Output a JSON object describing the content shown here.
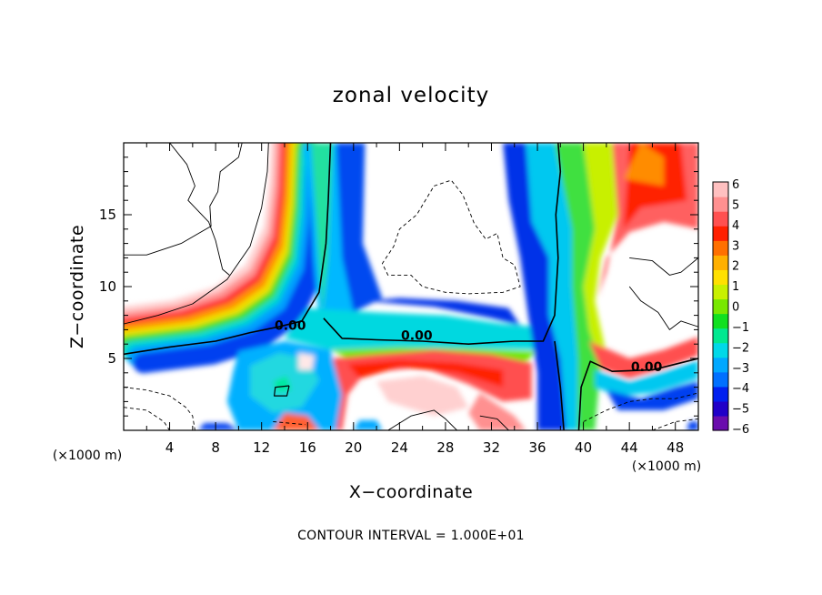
{
  "chart_data": {
    "type": "heatmap",
    "title": "zonal velocity",
    "xlabel": "X−coordinate",
    "ylabel": "Z−coordinate",
    "x_unit_label": "(×1000 m)",
    "y_unit_label": "(×1000 m)",
    "xlim": [
      0,
      50
    ],
    "ylim": [
      0,
      20
    ],
    "x_ticks": [
      4,
      8,
      12,
      16,
      20,
      24,
      28,
      32,
      36,
      40,
      44,
      48
    ],
    "y_ticks": [
      5,
      10,
      15
    ],
    "colorbar": {
      "min": -6,
      "max": 6,
      "tick_labels": [
        "6",
        "5",
        "4",
        "3",
        "2",
        "1",
        "0",
        "−1",
        "−2",
        "−3",
        "−4",
        "−5",
        "−6"
      ],
      "colors": [
        "#6a0dad",
        "#2000c8",
        "#0020f0",
        "#0070ff",
        "#00a8ff",
        "#00d8e8",
        "#00e890",
        "#10e020",
        "#78e800",
        "#c8f000",
        "#ffe000",
        "#ffb000",
        "#ff7000",
        "#ff2000",
        "#ff5050",
        "#ff9090",
        "#ffc0c0"
      ]
    },
    "contour_labels": [
      {
        "text": "0.00",
        "x": 14.5,
        "z": 7.0
      },
      {
        "text": "0.00",
        "x": 25.5,
        "z": 6.3
      },
      {
        "text": "0.00",
        "x": 45.5,
        "z": 4.1
      }
    ],
    "footer": "CONTOUR INTERVAL = 1.000E+01"
  }
}
